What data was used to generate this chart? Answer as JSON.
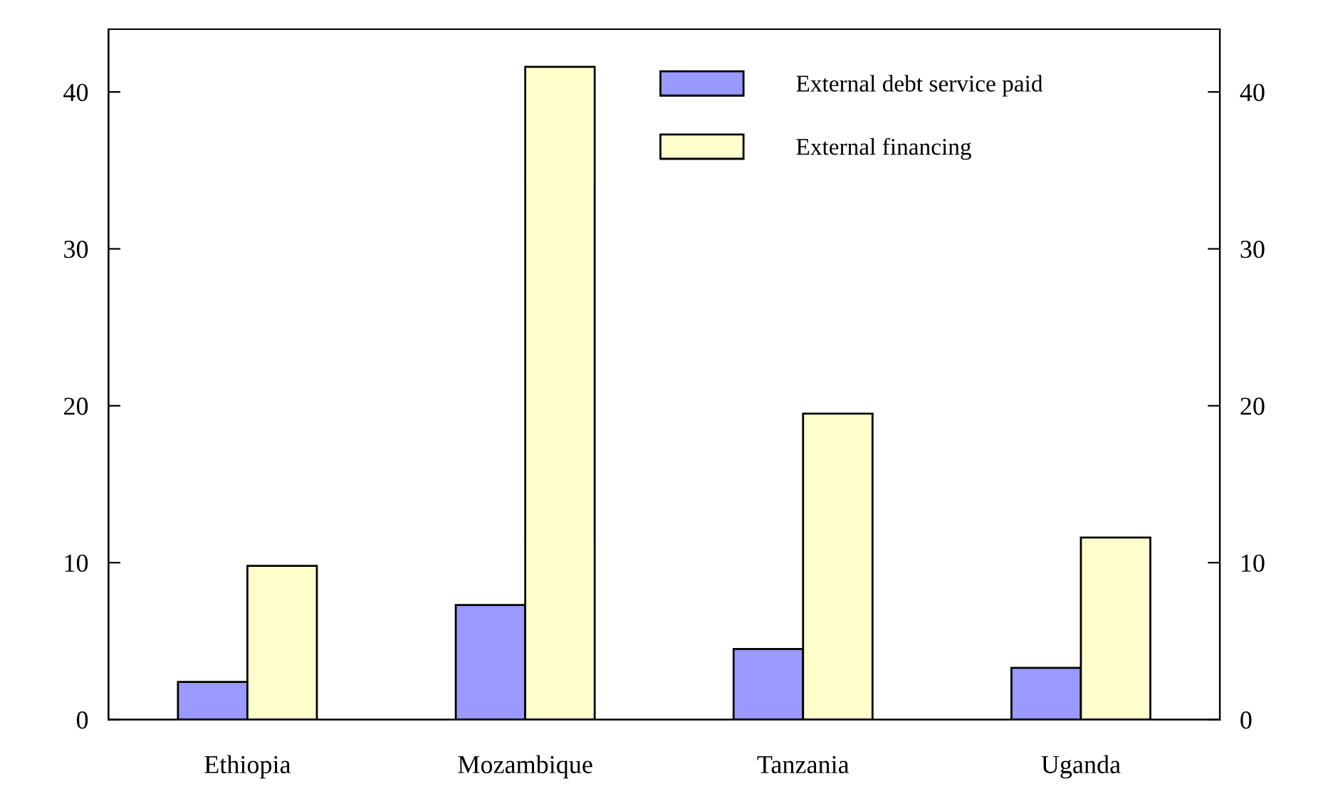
{
  "chart_data": {
    "type": "bar",
    "categories": [
      "Ethiopia",
      "Mozambique",
      "Tanzania",
      "Uganda"
    ],
    "series": [
      {
        "name": "External debt service paid",
        "color": "#9999ff",
        "values": [
          2.4,
          7.3,
          4.5,
          3.3
        ]
      },
      {
        "name": "External financing",
        "color": "#ffffcc",
        "values": [
          9.8,
          41.6,
          19.5,
          11.6
        ]
      }
    ],
    "ylim": [
      0,
      44
    ],
    "yticks": [
      0,
      10,
      20,
      30,
      40
    ],
    "y2lim": [
      0,
      44
    ],
    "y2ticks": [
      0,
      10,
      20,
      30,
      40
    ],
    "grid": false,
    "legend": "top right"
  }
}
